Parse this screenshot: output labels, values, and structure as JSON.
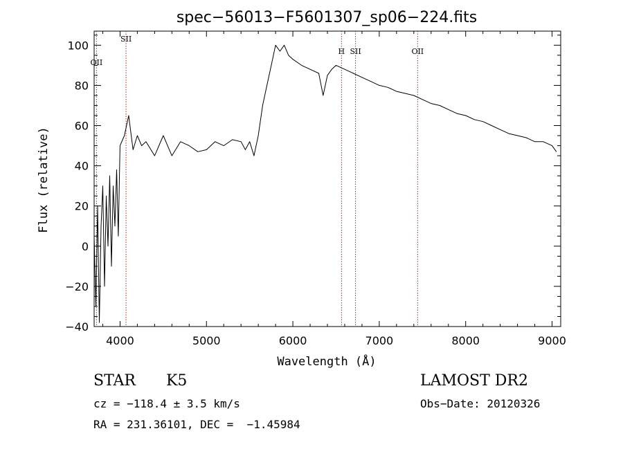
{
  "chart_data": {
    "type": "line",
    "title": "spec−56013−F5601307_sp06−224.fits",
    "xlabel": "Wavelength (Å)",
    "ylabel": "Flux (relative)",
    "xlim": [
      3700,
      9100
    ],
    "ylim": [
      -40,
      107
    ],
    "xticks": [
      4000,
      5000,
      6000,
      7000,
      8000,
      9000
    ],
    "yticks": [
      -40,
      -20,
      0,
      20,
      40,
      60,
      80,
      100
    ],
    "ytick_labels": [
      "−40",
      "−20",
      "0",
      "20",
      "40",
      "60",
      "80",
      "100"
    ],
    "grid": false,
    "series": [
      {
        "color": "#000000",
        "x": [
          3700,
          3720,
          3740,
          3760,
          3780,
          3800,
          3820,
          3840,
          3860,
          3880,
          3900,
          3920,
          3940,
          3960,
          3980,
          4000,
          4050,
          4100,
          4150,
          4200,
          4250,
          4300,
          4400,
          4500,
          4600,
          4700,
          4800,
          4900,
          5000,
          5100,
          5200,
          5300,
          5400,
          5450,
          5500,
          5550,
          5600,
          5650,
          5700,
          5750,
          5800,
          5850,
          5900,
          5950,
          6000,
          6100,
          6200,
          6300,
          6350,
          6400,
          6450,
          6500,
          6550,
          6600,
          6650,
          6700,
          6800,
          6900,
          7000,
          7100,
          7200,
          7300,
          7400,
          7500,
          7600,
          7700,
          7800,
          7900,
          8000,
          8100,
          8200,
          8300,
          8400,
          8500,
          8600,
          8700,
          8800,
          8900,
          9000,
          9050
        ],
        "y": [
          5,
          -30,
          20,
          -38,
          10,
          30,
          -20,
          25,
          0,
          35,
          -10,
          30,
          10,
          38,
          5,
          50,
          55,
          65,
          48,
          55,
          50,
          52,
          45,
          55,
          45,
          52,
          50,
          47,
          48,
          52,
          50,
          53,
          52,
          48,
          52,
          45,
          55,
          70,
          80,
          90,
          100,
          97,
          100,
          95,
          93,
          90,
          88,
          86,
          75,
          85,
          88,
          90,
          89,
          88,
          87,
          86,
          84,
          82,
          80,
          79,
          77,
          76,
          75,
          73,
          71,
          70,
          68,
          66,
          65,
          63,
          62,
          60,
          58,
          56,
          55,
          54,
          52,
          52,
          50,
          47
        ]
      }
    ],
    "lines": [
      {
        "label": "OII",
        "x": 3727
      },
      {
        "label": "SII",
        "x": 4069
      },
      {
        "label": "H",
        "x": 6563
      },
      {
        "label": "SII",
        "x": 6725
      },
      {
        "label": "OII",
        "x": 7444
      }
    ]
  },
  "info": {
    "class_label": "STAR",
    "subclass_label": "K5",
    "survey": "LAMOST DR2",
    "cz": "cz = −118.4 ± 3.5 km/s",
    "obs_date": "Obs−Date: 20120326",
    "coords": "RA = 231.36101, DEC =  −1.45984"
  }
}
